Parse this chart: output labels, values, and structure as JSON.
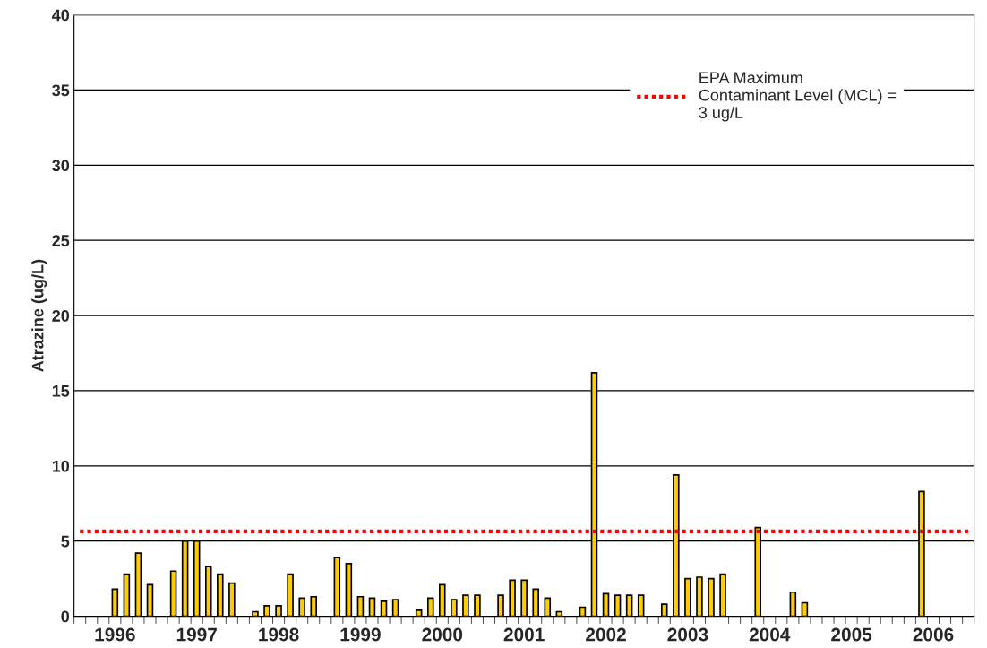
{
  "chart_data": {
    "type": "bar",
    "ylabel": "Atrazine (ug/L)",
    "categories": [
      null,
      null,
      null,
      "1996",
      null,
      null,
      null,
      null,
      null,
      null,
      "1997",
      null,
      null,
      null,
      null,
      null,
      null,
      "1998",
      null,
      null,
      null,
      null,
      null,
      null,
      "1999",
      null,
      null,
      null,
      null,
      null,
      null,
      "2000",
      null,
      null,
      null,
      null,
      null,
      null,
      "2001",
      null,
      null,
      null,
      null,
      null,
      null,
      "2002",
      null,
      null,
      null,
      null,
      null,
      null,
      "2003",
      null,
      null,
      null,
      null,
      null,
      null,
      "2004",
      null,
      null,
      null,
      null,
      null,
      null,
      "2005",
      null,
      null,
      null,
      null,
      null,
      null,
      "2006",
      null,
      null,
      null
    ],
    "series": [
      {
        "color": "#ffcc00",
        "values": [
          null,
          null,
          null,
          1.8,
          2.8,
          4.2,
          2.1,
          null,
          3.0,
          5.0,
          5.0,
          3.3,
          2.8,
          2.2,
          null,
          0.3,
          0.7,
          0.7,
          2.8,
          1.2,
          1.3,
          null,
          3.9,
          3.5,
          1.3,
          1.2,
          1.0,
          1.1,
          null,
          0.4,
          1.2,
          2.1,
          1.1,
          1.4,
          1.4,
          null,
          1.4,
          2.4,
          2.4,
          1.8,
          1.2,
          0.3,
          null,
          0.6,
          16.2,
          1.5,
          1.4,
          1.4,
          1.4,
          null,
          0.8,
          9.4,
          2.5,
          2.6,
          2.5,
          2.8,
          null,
          null,
          5.9,
          null,
          null,
          1.6,
          0.9,
          null,
          null,
          null,
          null,
          null,
          null,
          null,
          null,
          null,
          8.3,
          null,
          null,
          null,
          null
        ]
      },
      {
        "type": "line",
        "name": "EPA Maximum\nContaminant Level (MCL) =\n3 ug/L",
        "color": "#ff0000",
        "line_style": "dotted",
        "values": [
          5.65,
          5.65,
          5.65,
          5.65,
          5.65,
          5.65,
          5.65,
          5.65,
          5.65,
          5.65,
          5.65,
          5.65,
          5.65,
          5.65,
          5.65,
          5.65,
          5.65,
          5.65,
          5.65,
          5.65,
          5.65,
          5.65,
          5.65,
          5.65,
          5.65,
          5.65,
          5.65,
          5.65,
          5.65,
          5.65,
          5.65,
          5.65,
          5.65,
          5.65,
          5.65,
          5.65,
          5.65,
          5.65,
          5.65,
          5.65,
          5.65,
          5.65,
          5.65,
          5.65,
          5.65,
          5.65,
          5.65,
          5.65,
          5.65,
          5.65,
          5.65,
          5.65,
          5.65,
          5.65,
          5.65,
          5.65,
          5.65,
          5.65,
          5.65,
          5.65,
          5.65,
          5.65,
          5.65,
          5.65,
          5.65,
          5.65,
          5.65,
          5.65,
          5.65,
          5.65,
          5.65,
          5.65,
          5.65,
          5.65,
          5.65,
          5.65,
          5.65
        ]
      }
    ],
    "ylim": [
      0,
      40
    ],
    "yticks": [
      0,
      5,
      10,
      15,
      20,
      25,
      30,
      35,
      40
    ],
    "grid": "y",
    "legend": "top right"
  }
}
